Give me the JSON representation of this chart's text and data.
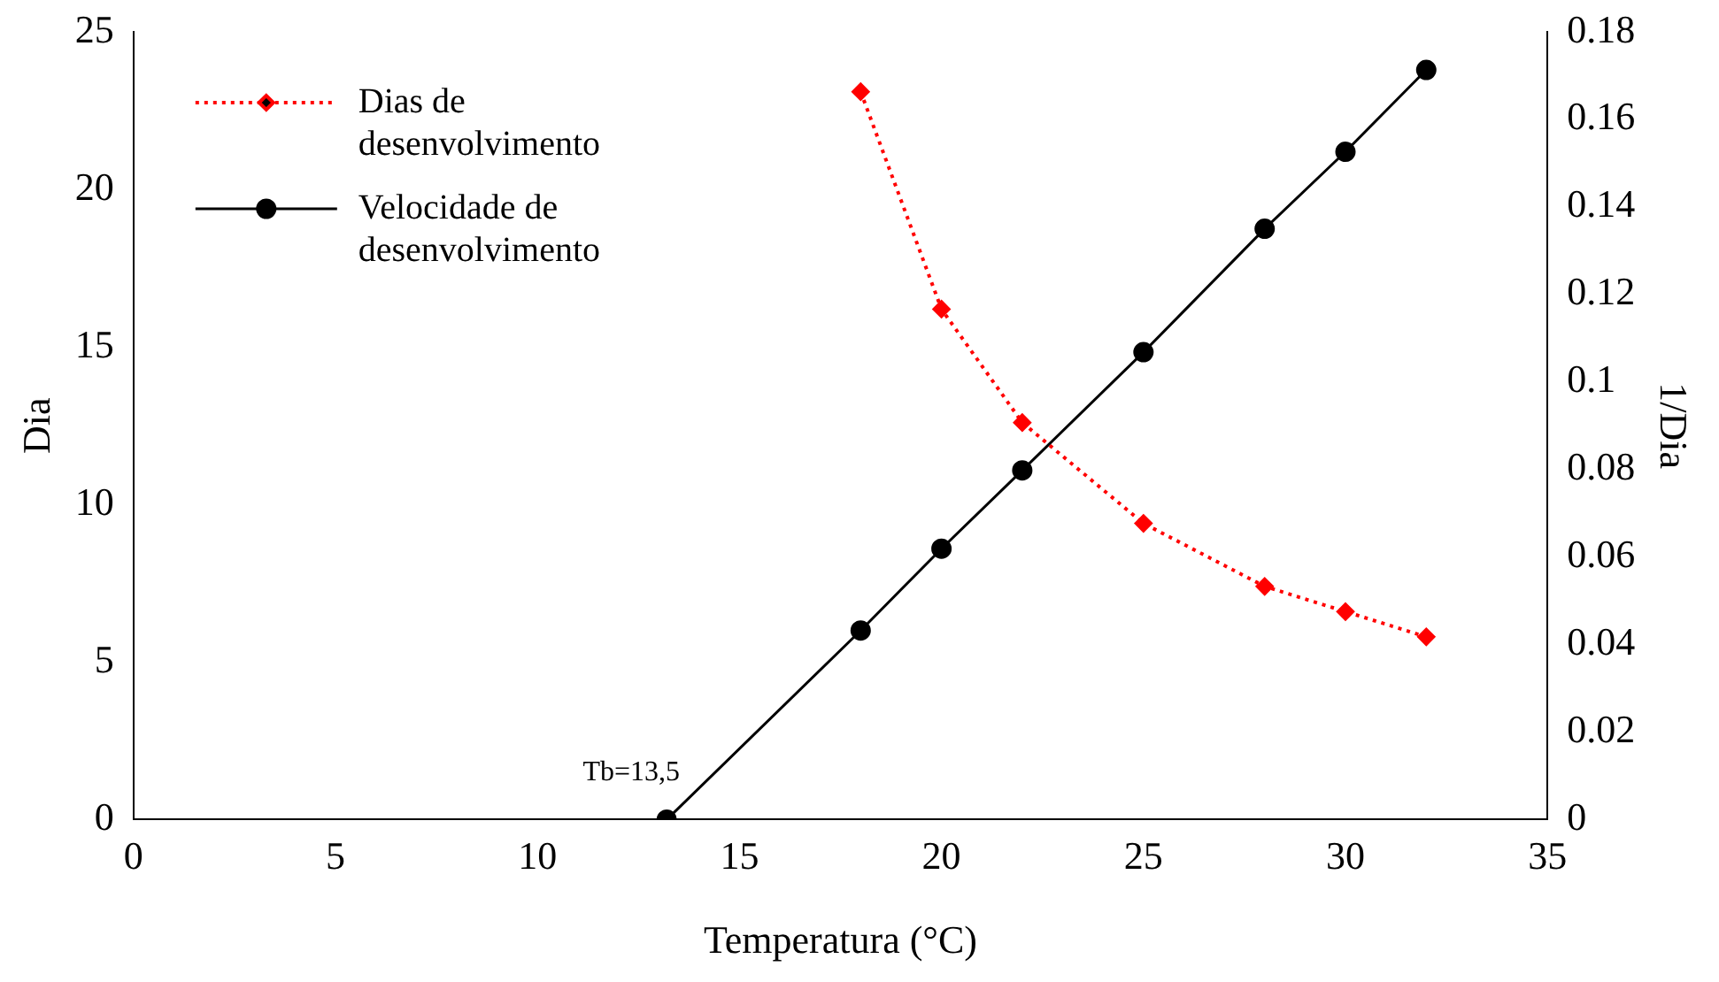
{
  "chart_data": {
    "type": "line",
    "xlabel": "Temperatura (°C)",
    "ylabel": "Dia",
    "y2label": "1/Dia",
    "xlim": [
      0,
      35
    ],
    "xticks": [
      0,
      5,
      10,
      15,
      20,
      25,
      30,
      35
    ],
    "ylim": [
      0,
      25
    ],
    "yticks": [
      0,
      5,
      10,
      15,
      20,
      25
    ],
    "y2lim": [
      0,
      0.18
    ],
    "y2ticks": [
      0,
      0.02,
      0.04,
      0.06,
      0.08,
      0.1,
      0.12,
      0.14,
      0.16,
      0.18
    ],
    "grid": false,
    "legend": "top left",
    "series": [
      {
        "name": "Dias de desenvolvimento",
        "color": "#ff0000",
        "x": [
          18,
          20,
          22,
          25,
          28,
          30,
          32
        ],
        "values": [
          23.1,
          16.2,
          12.6,
          9.4,
          7.4,
          6.6,
          5.8
        ],
        "marker": "diamond",
        "line_style": "dotted"
      },
      {
        "name": "Velocidade de desenvolvimento",
        "color": "#000000",
        "x": [
          13.2,
          18,
          20,
          22,
          25,
          28,
          30,
          32
        ],
        "values": [
          0,
          0.0432,
          0.0619,
          0.0798,
          0.1068,
          0.135,
          0.1526,
          0.1713
        ],
        "marker": "circle",
        "line_style": "solid",
        "axis": "y2"
      }
    ],
    "annotations": [
      {
        "text": "Tb=13,5",
        "x": 13.2,
        "y": 0
      }
    ]
  }
}
